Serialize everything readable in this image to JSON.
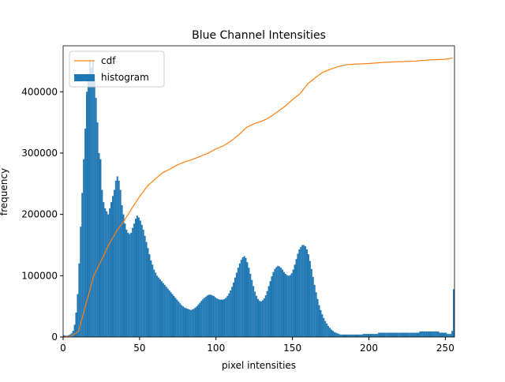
{
  "chart_data": {
    "type": "histogram",
    "title": "Blue Channel Intensities",
    "xlabel": "pixel intensities",
    "ylabel": "frequency",
    "legend": "upper left",
    "xlim": [
      0,
      256
    ],
    "ylim": [
      0,
      475000
    ],
    "xticks": [
      0,
      50,
      100,
      150,
      200,
      250
    ],
    "yticks": [
      0,
      100000,
      200000,
      300000,
      400000
    ],
    "bins": [
      0,
      1,
      2,
      3,
      4,
      5,
      6,
      7,
      8,
      9,
      10,
      11,
      12,
      13,
      14,
      15,
      16,
      17,
      18,
      19,
      20,
      21,
      22,
      23,
      24,
      25,
      26,
      27,
      28,
      29,
      30,
      31,
      32,
      33,
      34,
      35,
      36,
      37,
      38,
      39,
      40,
      41,
      42,
      43,
      44,
      45,
      46,
      47,
      48,
      49,
      50,
      51,
      52,
      53,
      54,
      55,
      56,
      57,
      58,
      59,
      60,
      61,
      62,
      63,
      64,
      65,
      66,
      67,
      68,
      69,
      70,
      71,
      72,
      73,
      74,
      75,
      76,
      77,
      78,
      79,
      80,
      81,
      82,
      83,
      84,
      85,
      86,
      87,
      88,
      89,
      90,
      91,
      92,
      93,
      94,
      95,
      96,
      97,
      98,
      99,
      100,
      101,
      102,
      103,
      104,
      105,
      106,
      107,
      108,
      109,
      110,
      111,
      112,
      113,
      114,
      115,
      116,
      117,
      118,
      119,
      120,
      121,
      122,
      123,
      124,
      125,
      126,
      127,
      128,
      129,
      130,
      131,
      132,
      133,
      134,
      135,
      136,
      137,
      138,
      139,
      140,
      141,
      142,
      143,
      144,
      145,
      146,
      147,
      148,
      149,
      150,
      151,
      152,
      153,
      154,
      155,
      156,
      157,
      158,
      159,
      160,
      161,
      162,
      163,
      164,
      165,
      166,
      167,
      168,
      169,
      170,
      171,
      172,
      173,
      174,
      175,
      176,
      177,
      178,
      179,
      180,
      181,
      182,
      183,
      184,
      185,
      186,
      187,
      188,
      189,
      190,
      191,
      192,
      193,
      194,
      195,
      196,
      197,
      198,
      199,
      200,
      201,
      202,
      203,
      204,
      205,
      206,
      207,
      208,
      209,
      210,
      211,
      212,
      213,
      214,
      215,
      216,
      217,
      218,
      219,
      220,
      221,
      222,
      223,
      224,
      225,
      226,
      227,
      228,
      229,
      230,
      231,
      232,
      233,
      234,
      235,
      236,
      237,
      238,
      239,
      240,
      241,
      242,
      243,
      244,
      245,
      246,
      247,
      248,
      249,
      250,
      251,
      252,
      253,
      254,
      255,
      256
    ],
    "series": [
      {
        "name": "cdf",
        "type": "line",
        "color": "#ff7f0e",
        "x": [
          0,
          5,
          10,
          15,
          20,
          25,
          30,
          35,
          40,
          45,
          50,
          55,
          60,
          65,
          70,
          75,
          80,
          85,
          90,
          95,
          100,
          105,
          110,
          115,
          120,
          125,
          130,
          135,
          140,
          145,
          150,
          155,
          160,
          165,
          170,
          175,
          180,
          185,
          190,
          200,
          210,
          220,
          230,
          240,
          250,
          255
        ],
        "values": [
          0,
          1000,
          9000,
          54000,
          100000,
          125000,
          151000,
          173000,
          190000,
          210000,
          229000,
          246000,
          257000,
          268000,
          274000,
          281000,
          286000,
          290000,
          295000,
          300000,
          307000,
          312000,
          320000,
          330000,
          342000,
          348000,
          352000,
          358000,
          367000,
          376000,
          387000,
          397000,
          413000,
          423000,
          432000,
          437000,
          441000,
          444000,
          445000,
          446000,
          448000,
          449000,
          450000,
          452000,
          453000,
          455000
        ]
      },
      {
        "name": "histogram",
        "type": "histogram",
        "color": "#1f77b4",
        "values": [
          3000,
          2000,
          2000,
          3000,
          4000,
          6000,
          10000,
          20000,
          40000,
          70000,
          120000,
          180000,
          235000,
          290000,
          340000,
          400000,
          430000,
          452000,
          440000,
          450000,
          420000,
          390000,
          350000,
          300000,
          290000,
          240000,
          220000,
          210000,
          205000,
          200000,
          210000,
          220000,
          230000,
          240000,
          255000,
          262000,
          255000,
          240000,
          215000,
          200000,
          185000,
          175000,
          170000,
          168000,
          170000,
          178000,
          185000,
          193000,
          198000,
          195000,
          190000,
          183000,
          175000,
          165000,
          155000,
          145000,
          135000,
          125000,
          118000,
          110000,
          105000,
          100000,
          97000,
          94000,
          91000,
          88000,
          85000,
          82000,
          79000,
          76000,
          73000,
          70000,
          67000,
          64000,
          61000,
          58000,
          55000,
          52000,
          50000,
          48000,
          47000,
          46000,
          45000,
          44000,
          45000,
          46000,
          48000,
          50000,
          53000,
          56000,
          59000,
          62000,
          64000,
          66000,
          68000,
          69000,
          69000,
          68000,
          67000,
          65000,
          63000,
          62000,
          61000,
          61000,
          61000,
          62000,
          64000,
          67000,
          71000,
          76000,
          82000,
          89000,
          97000,
          105000,
          113000,
          120000,
          126000,
          130000,
          132000,
          129000,
          122000,
          113000,
          103000,
          93000,
          83000,
          74000,
          67000,
          62000,
          59000,
          58000,
          60000,
          63000,
          68000,
          75000,
          83000,
          91000,
          99000,
          106000,
          111000,
          114000,
          116000,
          115000,
          113000,
          110000,
          106000,
          103000,
          101000,
          100000,
          101000,
          104000,
          110000,
          118000,
          127000,
          136000,
          143000,
          147000,
          150000,
          150000,
          148000,
          143000,
          135000,
          124000,
          111000,
          98000,
          85000,
          73000,
          62000,
          52000,
          44000,
          37000,
          31000,
          26000,
          22000,
          18000,
          15000,
          12000,
          10000,
          8000,
          7000,
          6000,
          5000,
          4000,
          4000,
          4000,
          4000,
          4000,
          4000,
          4000,
          4000,
          4000,
          4000,
          4000,
          4000,
          4000,
          4000,
          4000,
          5000,
          5000,
          5000,
          5000,
          5000,
          5000,
          5000,
          5000,
          5000,
          5000,
          7000,
          7000,
          7000,
          7000,
          7000,
          7000,
          7000,
          7000,
          7000,
          7000,
          7000,
          7000,
          7000,
          7000,
          7000,
          7000,
          7000,
          7000,
          7000,
          7000,
          7000,
          7000,
          7000,
          7000,
          7000,
          7000,
          7000,
          9000,
          9000,
          9000,
          9000,
          9000,
          9000,
          9000,
          9000,
          9000,
          9000,
          9000,
          9000,
          9000,
          7000,
          7000,
          7000,
          7000,
          7000,
          5000,
          5000,
          5000,
          10000,
          78000
        ]
      }
    ]
  }
}
